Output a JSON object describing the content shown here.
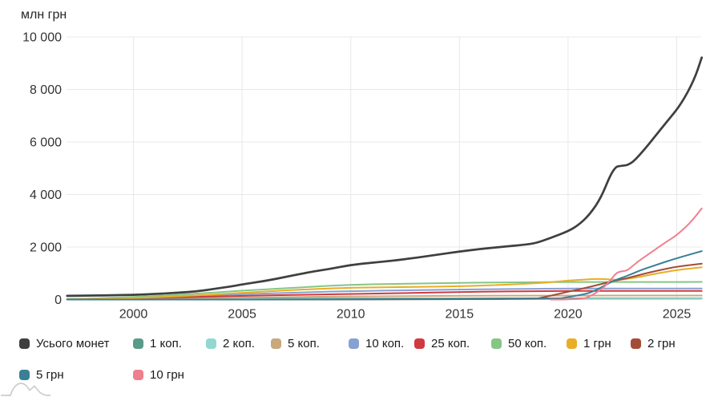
{
  "chart_data": {
    "type": "line",
    "unit_label": "млн грн",
    "x_ticks": [
      2000,
      2005,
      2010,
      2015,
      2020,
      2025
    ],
    "y_ticks": [
      0,
      2000,
      4000,
      6000,
      8000,
      10000
    ],
    "y_tick_labels": [
      "0",
      "2 000",
      "4 000",
      "6 000",
      "8 000",
      "10 000"
    ],
    "x_range": [
      1996.95,
      2026.15
    ],
    "y_range": [
      0,
      10000
    ],
    "grid": true,
    "legend_position": "bottom",
    "series": [
      {
        "name": "Усього монет",
        "color": "#3f3f3f",
        "values": [
          [
            1996.95,
            140
          ],
          [
            1998,
            152
          ],
          [
            1999,
            163
          ],
          [
            2000,
            178
          ],
          [
            2001,
            215
          ],
          [
            2002,
            258
          ],
          [
            2003,
            315
          ],
          [
            2004,
            440
          ],
          [
            2004.5,
            500
          ],
          [
            2005,
            575
          ],
          [
            2006,
            700
          ],
          [
            2007,
            860
          ],
          [
            2008,
            1030
          ],
          [
            2009,
            1160
          ],
          [
            2010,
            1315
          ],
          [
            2011,
            1405
          ],
          [
            2012,
            1485
          ],
          [
            2013,
            1590
          ],
          [
            2014,
            1710
          ],
          [
            2015,
            1830
          ],
          [
            2016,
            1930
          ],
          [
            2017,
            2010
          ],
          [
            2018,
            2090
          ],
          [
            2018.5,
            2145
          ],
          [
            2019.2,
            2345
          ],
          [
            2020,
            2600
          ],
          [
            2020.5,
            2850
          ],
          [
            2021,
            3245
          ],
          [
            2021.5,
            3850
          ],
          [
            2021.95,
            4750
          ],
          [
            2022.2,
            5050
          ],
          [
            2022.35,
            5085
          ],
          [
            2022.85,
            5125
          ],
          [
            2023.4,
            5600
          ],
          [
            2024,
            6215
          ],
          [
            2024.6,
            6825
          ],
          [
            2025.2,
            7435
          ],
          [
            2025.8,
            8355
          ],
          [
            2026.15,
            9215
          ]
        ]
      },
      {
        "name": "1 коп.",
        "color": "#5a9a88",
        "values": [
          [
            1996.95,
            8
          ],
          [
            1998,
            12
          ],
          [
            2000,
            16
          ],
          [
            2002,
            20
          ],
          [
            2005,
            30
          ],
          [
            2008,
            36
          ],
          [
            2010,
            39
          ],
          [
            2013,
            43
          ],
          [
            2015,
            45
          ],
          [
            2018,
            47
          ],
          [
            2020,
            47
          ],
          [
            2026.15,
            47
          ]
        ]
      },
      {
        "name": "2 коп.",
        "color": "#93d8d0",
        "values": [
          [
            1996.95,
            2
          ],
          [
            2000,
            7
          ],
          [
            2005,
            15
          ],
          [
            2010,
            22
          ],
          [
            2015,
            27
          ],
          [
            2019,
            29
          ],
          [
            2026.15,
            30
          ]
        ]
      },
      {
        "name": "5 коп.",
        "color": "#c9a87d",
        "values": [
          [
            1996.95,
            8
          ],
          [
            2000,
            30
          ],
          [
            2003,
            55
          ],
          [
            2005,
            75
          ],
          [
            2008,
            105
          ],
          [
            2010,
            118
          ],
          [
            2013,
            135
          ],
          [
            2015,
            142
          ],
          [
            2017,
            148
          ],
          [
            2019,
            151
          ],
          [
            2020,
            152
          ],
          [
            2026.15,
            153
          ]
        ]
      },
      {
        "name": "10 коп.",
        "color": "#86a1d3",
        "values": [
          [
            1996.95,
            20
          ],
          [
            2000,
            70
          ],
          [
            2003,
            150
          ],
          [
            2005,
            200
          ],
          [
            2008,
            280
          ],
          [
            2010,
            322
          ],
          [
            2013,
            358
          ],
          [
            2015,
            382
          ],
          [
            2017,
            400
          ],
          [
            2019,
            412
          ],
          [
            2020,
            418
          ],
          [
            2021,
            420
          ],
          [
            2026.15,
            422
          ]
        ]
      },
      {
        "name": "25 коп.",
        "color": "#cf3a3f",
        "values": [
          [
            1996.95,
            10
          ],
          [
            2000,
            50
          ],
          [
            2003,
            105
          ],
          [
            2005,
            145
          ],
          [
            2008,
            185
          ],
          [
            2010,
            210
          ],
          [
            2013,
            255
          ],
          [
            2015,
            287
          ],
          [
            2017,
            308
          ],
          [
            2019,
            322
          ],
          [
            2020,
            327
          ],
          [
            2021,
            329
          ],
          [
            2026.15,
            331
          ]
        ]
      },
      {
        "name": "50 коп.",
        "color": "#85c685",
        "values": [
          [
            1996.95,
            10
          ],
          [
            2000,
            90
          ],
          [
            2003,
            230
          ],
          [
            2005,
            340
          ],
          [
            2008,
            480
          ],
          [
            2010,
            565
          ],
          [
            2013,
            610
          ],
          [
            2015,
            635
          ],
          [
            2017,
            650
          ],
          [
            2019,
            660
          ],
          [
            2020,
            665
          ],
          [
            2022,
            668
          ],
          [
            2024,
            670
          ],
          [
            2026.15,
            672
          ]
        ]
      },
      {
        "name": "1 грн",
        "color": "#e8ae25",
        "values": [
          [
            1996.95,
            5
          ],
          [
            2000,
            50
          ],
          [
            2003,
            160
          ],
          [
            2005,
            260
          ],
          [
            2008,
            390
          ],
          [
            2010,
            452
          ],
          [
            2013,
            480
          ],
          [
            2015,
            504
          ],
          [
            2017,
            560
          ],
          [
            2018,
            600
          ],
          [
            2019,
            645
          ],
          [
            2020,
            725
          ],
          [
            2021,
            775
          ],
          [
            2021.6,
            790
          ],
          [
            2022.3,
            735
          ],
          [
            2023,
            820
          ],
          [
            2023.35,
            870
          ],
          [
            2024.1,
            1000
          ],
          [
            2024.85,
            1105
          ],
          [
            2025.55,
            1175
          ],
          [
            2026.15,
            1230
          ]
        ]
      },
      {
        "name": "2 грн",
        "color": "#a34d37",
        "values": [
          [
            1996.95,
            0
          ],
          [
            2018.3,
            0
          ],
          [
            2019,
            105
          ],
          [
            2020,
            300
          ],
          [
            2021,
            480
          ],
          [
            2022,
            690
          ],
          [
            2022.6,
            790
          ],
          [
            2023.35,
            950
          ],
          [
            2024.1,
            1100
          ],
          [
            2024.85,
            1230
          ],
          [
            2025.55,
            1310
          ],
          [
            2026.15,
            1365
          ]
        ]
      },
      {
        "name": "5 грн",
        "color": "#397f96",
        "values": [
          [
            1996.95,
            0
          ],
          [
            2019.4,
            0
          ],
          [
            2020,
            95
          ],
          [
            2020.5,
            165
          ],
          [
            2021,
            250
          ],
          [
            2021.5,
            450
          ],
          [
            2022,
            680
          ],
          [
            2022.3,
            780
          ],
          [
            2022.6,
            865
          ],
          [
            2023,
            1000
          ],
          [
            2023.35,
            1125
          ],
          [
            2024.1,
            1330
          ],
          [
            2024.85,
            1535
          ],
          [
            2025.55,
            1705
          ],
          [
            2026.15,
            1845
          ]
        ]
      },
      {
        "name": "10 грн",
        "color": "#f07f8e",
        "values": [
          [
            2019.2,
            0
          ],
          [
            2020.65,
            0
          ],
          [
            2021.1,
            160
          ],
          [
            2021.6,
            430
          ],
          [
            2021.9,
            680
          ],
          [
            2022.2,
            1000
          ],
          [
            2022.4,
            1075
          ],
          [
            2022.7,
            1090
          ],
          [
            2023,
            1300
          ],
          [
            2023.35,
            1530
          ],
          [
            2024,
            1900
          ],
          [
            2024.6,
            2240
          ],
          [
            2025,
            2450
          ],
          [
            2025.6,
            2900
          ],
          [
            2026.15,
            3470
          ]
        ]
      }
    ]
  }
}
